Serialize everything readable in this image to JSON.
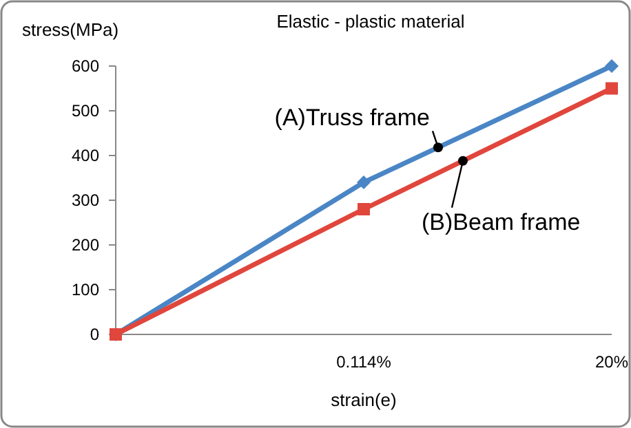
{
  "chart_data": {
    "type": "line",
    "title": "Elastic - plastic material",
    "xlabel": "strain(e)",
    "ylabel": "stress(MPa)",
    "categories": [
      null,
      "0.114%",
      "20%"
    ],
    "series": [
      {
        "name": "(A)Truss frame",
        "color": "#4a86c5",
        "marker": "diamond",
        "values": [
          0,
          340,
          600
        ]
      },
      {
        "name": "(B)Beam frame",
        "color": "#e0463c",
        "marker": "square",
        "values": [
          0,
          280,
          550
        ]
      }
    ],
    "ylim": [
      0,
      600
    ],
    "yticks": [
      0,
      100,
      200,
      300,
      400,
      500,
      600
    ],
    "grid": false,
    "legend": false
  }
}
